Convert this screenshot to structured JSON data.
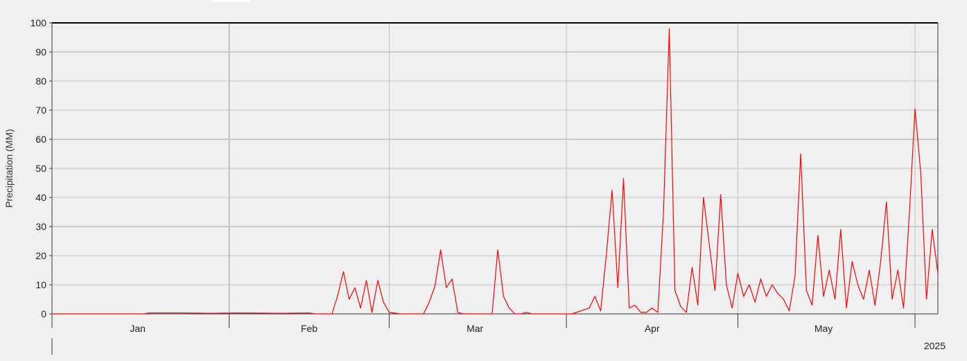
{
  "chart_data": {
    "type": "line",
    "title": "",
    "xlabel": "",
    "ylabel": "Precipitation (MM)",
    "ylim": [
      0,
      100
    ],
    "y_ticks": [
      0,
      10,
      20,
      30,
      40,
      50,
      60,
      70,
      80,
      90,
      100
    ],
    "x_range": [
      "2025-01-01",
      "2025-06-05"
    ],
    "x_tick_labels": [
      "Jan",
      "Feb",
      "Mar",
      "Apr",
      "May"
    ],
    "x_tick_positions": [
      "2025-01-16",
      "2025-02-15",
      "2025-03-16",
      "2025-04-16",
      "2025-05-16"
    ],
    "year_label": "2025",
    "grid": true,
    "line_color": "#ff0000",
    "series": [
      {
        "x": [
          "2025-01-01",
          "2025-01-17",
          "2025-01-18",
          "2025-01-24",
          "2025-01-29",
          "2025-02-02",
          "2025-02-10",
          "2025-02-15",
          "2025-02-16",
          "2025-02-19",
          "2025-02-20",
          "2025-02-21",
          "2025-02-22",
          "2025-02-23",
          "2025-02-24",
          "2025-02-25",
          "2025-02-26",
          "2025-02-27",
          "2025-02-28",
          "2025-03-01",
          "2025-03-03",
          "2025-03-07",
          "2025-03-08",
          "2025-03-09",
          "2025-03-10",
          "2025-03-11",
          "2025-03-12",
          "2025-03-13",
          "2025-03-14",
          "2025-03-15",
          "2025-03-19",
          "2025-03-20",
          "2025-03-21",
          "2025-03-22",
          "2025-03-23",
          "2025-03-24",
          "2025-03-25",
          "2025-03-26",
          "2025-03-28",
          "2025-04-02",
          "2025-04-05",
          "2025-04-06",
          "2025-04-07",
          "2025-04-08",
          "2025-04-09",
          "2025-04-10",
          "2025-04-11",
          "2025-04-12",
          "2025-04-13",
          "2025-04-14",
          "2025-04-15",
          "2025-04-16",
          "2025-04-17",
          "2025-04-18",
          "2025-04-19",
          "2025-04-20",
          "2025-04-21",
          "2025-04-22",
          "2025-04-23",
          "2025-04-24",
          "2025-04-25",
          "2025-04-27",
          "2025-04-28",
          "2025-04-29",
          "2025-04-30",
          "2025-05-01",
          "2025-05-02",
          "2025-05-03",
          "2025-05-04",
          "2025-05-05",
          "2025-05-06",
          "2025-05-07",
          "2025-05-08",
          "2025-05-09",
          "2025-05-10",
          "2025-05-11",
          "2025-05-12",
          "2025-05-13",
          "2025-05-14",
          "2025-05-15",
          "2025-05-16",
          "2025-05-17",
          "2025-05-18",
          "2025-05-19",
          "2025-05-20",
          "2025-05-21",
          "2025-05-22",
          "2025-05-23",
          "2025-05-24",
          "2025-05-25",
          "2025-05-26",
          "2025-05-27",
          "2025-05-28",
          "2025-05-29",
          "2025-05-30",
          "2025-05-31",
          "2025-06-01",
          "2025-06-02",
          "2025-06-03",
          "2025-06-04",
          "2025-06-05"
        ],
        "values": [
          0,
          0,
          0.3,
          0.3,
          0.2,
          0.3,
          0.2,
          0.3,
          0,
          0,
          6.5,
          14.5,
          5,
          9,
          2,
          11.5,
          0.5,
          11.5,
          4,
          0.5,
          0,
          0,
          4,
          9.5,
          22,
          9,
          12,
          0.5,
          0,
          0,
          0,
          22,
          6,
          2,
          0,
          0,
          0.5,
          0,
          0,
          0,
          2,
          6,
          1,
          20.5,
          42.5,
          9,
          46.5,
          2,
          3,
          0.5,
          0.5,
          2,
          0.5,
          35,
          98,
          8,
          2.5,
          0.5,
          16,
          3,
          40,
          8,
          41,
          10,
          2,
          14,
          6,
          10,
          4,
          12,
          6,
          10,
          7,
          5,
          1,
          13,
          55,
          8,
          3,
          27,
          6,
          15,
          5,
          29,
          2,
          18,
          10,
          5,
          15,
          3,
          18,
          38.5,
          5,
          15,
          2,
          34,
          70.5,
          48.5,
          5,
          29,
          14
        ]
      }
    ]
  }
}
